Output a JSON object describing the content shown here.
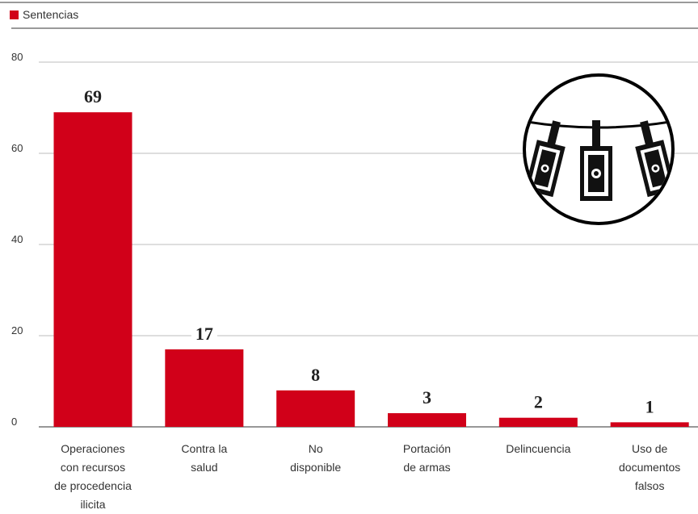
{
  "legend": {
    "label": "Sentencias",
    "color": "#d10019"
  },
  "icon": "money-laundering-clothesline-icon",
  "chart_data": {
    "type": "bar",
    "categories": [
      [
        "Operaciones",
        "con recursos",
        "de procedencia",
        "ilicita"
      ],
      [
        "Contra la",
        "salud"
      ],
      [
        "No",
        "disponible"
      ],
      [
        "Portación",
        "de armas"
      ],
      [
        "Delincuencia"
      ],
      [
        "Uso de",
        "documentos",
        "falsos"
      ]
    ],
    "series": [
      {
        "name": "Sentencias",
        "values": [
          69,
          17,
          8,
          3,
          2,
          1
        ],
        "color": "#d10019"
      }
    ],
    "yticks": [
      0,
      20,
      40,
      60,
      80
    ],
    "ylim": [
      0,
      80
    ],
    "grid": true,
    "legend_position": "top-left"
  }
}
